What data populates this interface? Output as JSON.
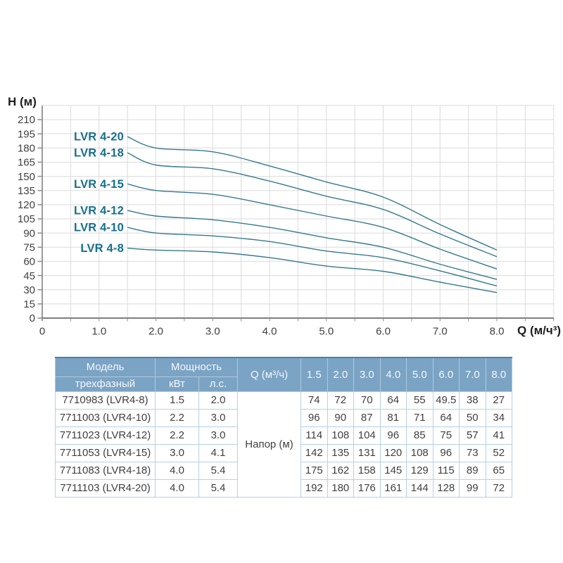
{
  "page": {
    "background": "#ffffff"
  },
  "chart": {
    "y_axis_title": "H (м)",
    "x_axis_title": "Q (м/ч³)",
    "colors": {
      "curve": "#35798C",
      "curve_label": "#166F8D",
      "grid": "#DBDBDB",
      "y_axis": "#9A9A9A",
      "x_axis": "#7F7F7F",
      "tick": "#8C8C8C",
      "tick_text": "#3F3F3F"
    }
  },
  "chart_data": {
    "type": "line",
    "title": "",
    "xlabel": "Q (м/ч³)",
    "ylabel": "H (м)",
    "x": [
      1.5,
      2.0,
      3.0,
      4.0,
      5.0,
      6.0,
      7.0,
      8.0
    ],
    "series": [
      {
        "name": "LVR 4-20",
        "values": [
          192,
          180,
          176,
          161,
          144,
          128,
          99,
          72
        ]
      },
      {
        "name": "LVR 4-18",
        "values": [
          175,
          162,
          158,
          145,
          129,
          115,
          89,
          65
        ]
      },
      {
        "name": "LVR 4-15",
        "values": [
          142,
          135,
          131,
          120,
          108,
          96,
          73,
          52
        ]
      },
      {
        "name": "LVR 4-12",
        "values": [
          114,
          108,
          104,
          96,
          85,
          75,
          57,
          41
        ]
      },
      {
        "name": "LVR 4-10",
        "values": [
          96,
          90,
          87,
          81,
          71,
          64,
          50,
          34
        ]
      },
      {
        "name": "LVR 4-8",
        "values": [
          74,
          72,
          70,
          64,
          55,
          49.5,
          38,
          27
        ]
      }
    ],
    "xlim": [
      0,
      9
    ],
    "ylim": [
      0,
      225
    ],
    "x_tick_values": [
      0,
      1,
      2,
      3,
      4,
      5,
      6,
      7,
      8
    ],
    "x_tick_labels": [
      "0",
      "1.0",
      "2.0",
      "3.0",
      "4.0",
      "5.0",
      "6.0",
      "7.0",
      "8.0"
    ],
    "y_tick_step": 15,
    "y_tick_max": 210,
    "grid": true,
    "legend_position": "inline-left"
  },
  "table": {
    "header": {
      "model": "Модель",
      "model_sub": "трехфазный",
      "power": "Мощность",
      "power_kw": "кВт",
      "power_hp": "л.с.",
      "flow": "Q (м³/ч)",
      "flows": [
        "1.5",
        "2.0",
        "3.0",
        "4.0",
        "5.0",
        "6.0",
        "7.0",
        "8.0"
      ],
      "head_label": "Напор (м)"
    },
    "rows": [
      {
        "model": "7710983 (LVR4-8)",
        "kw": "1.5",
        "hp": "2.0",
        "heads": [
          "74",
          "72",
          "70",
          "64",
          "55",
          "49.5",
          "38",
          "27"
        ]
      },
      {
        "model": "7711003 (LVR4-10)",
        "kw": "2.2",
        "hp": "3.0",
        "heads": [
          "96",
          "90",
          "87",
          "81",
          "71",
          "64",
          "50",
          "34"
        ]
      },
      {
        "model": "7711023 (LVR4-12)",
        "kw": "2.2",
        "hp": "3.0",
        "heads": [
          "114",
          "108",
          "104",
          "96",
          "85",
          "75",
          "57",
          "41"
        ]
      },
      {
        "model": "7711053 (LVR4-15)",
        "kw": "3.0",
        "hp": "4.1",
        "heads": [
          "142",
          "135",
          "131",
          "120",
          "108",
          "96",
          "73",
          "52"
        ]
      },
      {
        "model": "7711083 (LVR4-18)",
        "kw": "4.0",
        "hp": "5.4",
        "heads": [
          "175",
          "162",
          "158",
          "145",
          "129",
          "115",
          "89",
          "65"
        ]
      },
      {
        "model": "7711103 (LVR4-20)",
        "kw": "4.0",
        "hp": "5.4",
        "heads": [
          "192",
          "180",
          "176",
          "161",
          "144",
          "128",
          "99",
          "72"
        ]
      }
    ]
  }
}
